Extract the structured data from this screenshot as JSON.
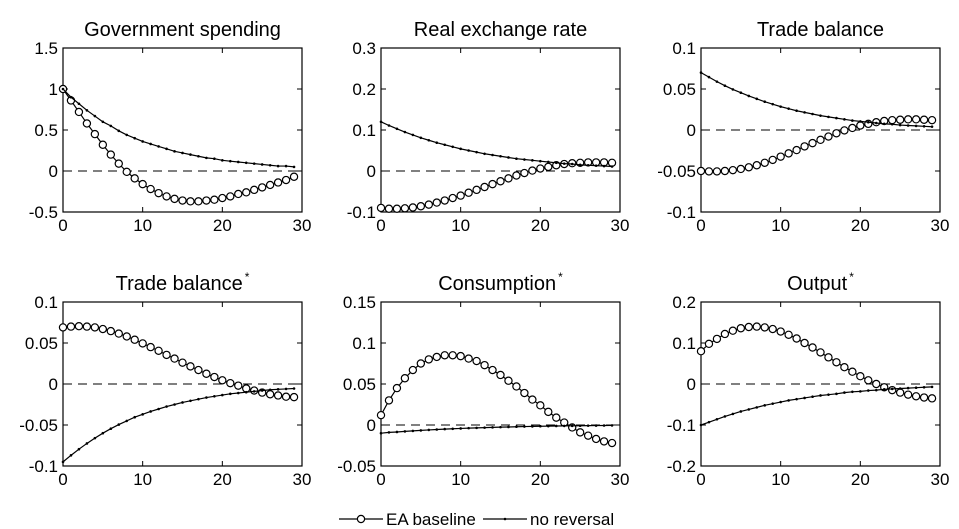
{
  "chart_data": [
    {
      "type": "line",
      "title": "Government spending",
      "title_superscript": "",
      "xlim": [
        0,
        30
      ],
      "ylim": [
        -0.5,
        1.5
      ],
      "xticks": [
        0,
        10,
        20,
        30
      ],
      "xtick_labels": [
        "0",
        "10",
        "20",
        "30"
      ],
      "yticks": [
        -0.5,
        0,
        0.5,
        1,
        1.5
      ],
      "ytick_labels": [
        "-0.5",
        "0",
        "0.5",
        "1",
        "1.5"
      ],
      "zero_line": "dashed",
      "grid": false,
      "x": [
        0,
        1,
        2,
        3,
        4,
        5,
        6,
        7,
        8,
        9,
        10,
        11,
        12,
        13,
        14,
        15,
        16,
        17,
        18,
        19,
        20,
        21,
        22,
        23,
        24,
        25,
        26,
        27,
        28,
        29
      ],
      "series": [
        {
          "name": "EA baseline",
          "marker": "circle",
          "values": [
            1.0,
            0.86,
            0.72,
            0.58,
            0.45,
            0.32,
            0.2,
            0.09,
            -0.01,
            -0.09,
            -0.16,
            -0.22,
            -0.27,
            -0.31,
            -0.34,
            -0.36,
            -0.37,
            -0.37,
            -0.36,
            -0.35,
            -0.33,
            -0.31,
            -0.28,
            -0.26,
            -0.23,
            -0.2,
            -0.17,
            -0.14,
            -0.11,
            -0.07
          ]
        },
        {
          "name": "no reversal",
          "marker": "dot",
          "values": [
            1.0,
            0.9,
            0.82,
            0.74,
            0.67,
            0.6,
            0.55,
            0.49,
            0.44,
            0.4,
            0.36,
            0.33,
            0.3,
            0.27,
            0.24,
            0.22,
            0.2,
            0.18,
            0.16,
            0.15,
            0.13,
            0.12,
            0.11,
            0.1,
            0.09,
            0.08,
            0.07,
            0.06,
            0.06,
            0.05
          ]
        }
      ]
    },
    {
      "type": "line",
      "title": "Real exchange rate",
      "title_superscript": "",
      "xlim": [
        0,
        30
      ],
      "ylim": [
        -0.1,
        0.3
      ],
      "xticks": [
        0,
        10,
        20,
        30
      ],
      "xtick_labels": [
        "0",
        "10",
        "20",
        "30"
      ],
      "yticks": [
        -0.1,
        0,
        0.1,
        0.2,
        0.3
      ],
      "ytick_labels": [
        "-0.1",
        "0",
        "0.1",
        "0.2",
        "0.3"
      ],
      "zero_line": "dashed",
      "grid": false,
      "x": [
        0,
        1,
        2,
        3,
        4,
        5,
        6,
        7,
        8,
        9,
        10,
        11,
        12,
        13,
        14,
        15,
        16,
        17,
        18,
        19,
        20,
        21,
        22,
        23,
        24,
        25,
        26,
        27,
        28,
        29
      ],
      "series": [
        {
          "name": "EA baseline",
          "marker": "circle",
          "values": [
            -0.09,
            -0.092,
            -0.092,
            -0.091,
            -0.089,
            -0.086,
            -0.082,
            -0.077,
            -0.072,
            -0.066,
            -0.06,
            -0.053,
            -0.046,
            -0.039,
            -0.032,
            -0.025,
            -0.018,
            -0.011,
            -0.005,
            0.001,
            0.006,
            0.01,
            0.014,
            0.017,
            0.019,
            0.02,
            0.021,
            0.021,
            0.021,
            0.02
          ]
        },
        {
          "name": "no reversal",
          "marker": "dot",
          "values": [
            0.12,
            0.111,
            0.103,
            0.095,
            0.088,
            0.081,
            0.075,
            0.069,
            0.064,
            0.059,
            0.054,
            0.05,
            0.046,
            0.042,
            0.039,
            0.036,
            0.033,
            0.03,
            0.028,
            0.026,
            0.024,
            0.022,
            0.02,
            0.018,
            0.017,
            0.015,
            0.014,
            0.013,
            0.012,
            0.011
          ]
        }
      ]
    },
    {
      "type": "line",
      "title": "Trade balance",
      "title_superscript": "",
      "xlim": [
        0,
        30
      ],
      "ylim": [
        -0.1,
        0.1
      ],
      "xticks": [
        0,
        10,
        20,
        30
      ],
      "xtick_labels": [
        "0",
        "10",
        "20",
        "30"
      ],
      "yticks": [
        -0.1,
        -0.05,
        0,
        0.05,
        0.1
      ],
      "ytick_labels": [
        "-0.1",
        "-0.05",
        "0",
        "0.05",
        "0.1"
      ],
      "zero_line": "dashed",
      "grid": false,
      "x": [
        0,
        1,
        2,
        3,
        4,
        5,
        6,
        7,
        8,
        9,
        10,
        11,
        12,
        13,
        14,
        15,
        16,
        17,
        18,
        19,
        20,
        21,
        22,
        23,
        24,
        25,
        26,
        27,
        28,
        29
      ],
      "series": [
        {
          "name": "EA baseline",
          "marker": "circle",
          "values": [
            -0.05,
            -0.0505,
            -0.0505,
            -0.05,
            -0.049,
            -0.0475,
            -0.0455,
            -0.043,
            -0.04,
            -0.0365,
            -0.0325,
            -0.0285,
            -0.0245,
            -0.02,
            -0.016,
            -0.012,
            -0.008,
            -0.004,
            -0.0005,
            0.0025,
            0.0055,
            0.0075,
            0.0095,
            0.011,
            0.012,
            0.0125,
            0.013,
            0.013,
            0.0125,
            0.012
          ]
        },
        {
          "name": "no reversal",
          "marker": "dot",
          "values": [
            0.07,
            0.0645,
            0.059,
            0.054,
            0.0495,
            0.0455,
            0.0415,
            0.038,
            0.0345,
            0.0315,
            0.0285,
            0.026,
            0.0235,
            0.0215,
            0.0195,
            0.0175,
            0.016,
            0.0145,
            0.013,
            0.0115,
            0.0105,
            0.0095,
            0.0085,
            0.0075,
            0.007,
            0.006,
            0.0055,
            0.005,
            0.0045,
            0.004
          ]
        }
      ]
    },
    {
      "type": "line",
      "title": "Trade balance",
      "title_superscript": "*",
      "xlim": [
        0,
        30
      ],
      "ylim": [
        -0.1,
        0.1
      ],
      "xticks": [
        0,
        10,
        20,
        30
      ],
      "xtick_labels": [
        "0",
        "10",
        "20",
        "30"
      ],
      "yticks": [
        -0.1,
        -0.05,
        0,
        0.05,
        0.1
      ],
      "ytick_labels": [
        "-0.1",
        "-0.05",
        "0",
        "0.05",
        "0.1"
      ],
      "zero_line": "dashed",
      "grid": false,
      "x": [
        0,
        1,
        2,
        3,
        4,
        5,
        6,
        7,
        8,
        9,
        10,
        11,
        12,
        13,
        14,
        15,
        16,
        17,
        18,
        19,
        20,
        21,
        22,
        23,
        24,
        25,
        26,
        27,
        28,
        29
      ],
      "series": [
        {
          "name": "EA baseline",
          "marker": "circle",
          "values": [
            0.069,
            0.07,
            0.0705,
            0.07,
            0.069,
            0.067,
            0.0645,
            0.0615,
            0.058,
            0.054,
            0.0495,
            0.045,
            0.0405,
            0.0355,
            0.031,
            0.026,
            0.0215,
            0.017,
            0.0125,
            0.0085,
            0.0045,
            0.001,
            -0.002,
            -0.0055,
            -0.008,
            -0.0105,
            -0.0125,
            -0.014,
            -0.0155,
            -0.016
          ]
        },
        {
          "name": "no reversal",
          "marker": "dot",
          "values": [
            -0.095,
            -0.087,
            -0.0795,
            -0.0725,
            -0.066,
            -0.06,
            -0.0545,
            -0.0495,
            -0.045,
            -0.0405,
            -0.037,
            -0.0335,
            -0.0305,
            -0.0275,
            -0.025,
            -0.0225,
            -0.0205,
            -0.0185,
            -0.0165,
            -0.015,
            -0.0135,
            -0.012,
            -0.011,
            -0.01,
            -0.009,
            -0.008,
            -0.007,
            -0.0065,
            -0.006,
            -0.0055
          ]
        }
      ]
    },
    {
      "type": "line",
      "title": "Consumption",
      "title_superscript": "*",
      "xlim": [
        0,
        30
      ],
      "ylim": [
        -0.05,
        0.15
      ],
      "xticks": [
        0,
        10,
        20,
        30
      ],
      "xtick_labels": [
        "0",
        "10",
        "20",
        "30"
      ],
      "yticks": [
        -0.05,
        0,
        0.05,
        0.1,
        0.15
      ],
      "ytick_labels": [
        "-0.05",
        "0",
        "0.05",
        "0.1",
        "0.15"
      ],
      "zero_line": "dashed",
      "grid": false,
      "x": [
        0,
        1,
        2,
        3,
        4,
        5,
        6,
        7,
        8,
        9,
        10,
        11,
        12,
        13,
        14,
        15,
        16,
        17,
        18,
        19,
        20,
        21,
        22,
        23,
        24,
        25,
        26,
        27,
        28,
        29
      ],
      "series": [
        {
          "name": "EA baseline",
          "marker": "circle",
          "values": [
            0.012,
            0.03,
            0.045,
            0.057,
            0.067,
            0.075,
            0.08,
            0.083,
            0.085,
            0.085,
            0.084,
            0.081,
            0.078,
            0.073,
            0.067,
            0.061,
            0.054,
            0.047,
            0.039,
            0.031,
            0.024,
            0.016,
            0.009,
            0.003,
            -0.003,
            -0.009,
            -0.013,
            -0.017,
            -0.02,
            -0.022
          ]
        },
        {
          "name": "no reversal",
          "marker": "dot",
          "values": [
            -0.01,
            -0.009,
            -0.0085,
            -0.0078,
            -0.0072,
            -0.0066,
            -0.006,
            -0.0055,
            -0.005,
            -0.0046,
            -0.0042,
            -0.0038,
            -0.0035,
            -0.0032,
            -0.0029,
            -0.0026,
            -0.0024,
            -0.0021,
            -0.0019,
            -0.0017,
            -0.0015,
            -0.0014,
            -0.0012,
            -0.0011,
            -0.001,
            -0.0009,
            -0.0008,
            -0.0007,
            -0.0006,
            -0.0005
          ]
        }
      ]
    },
    {
      "type": "line",
      "title": "Output",
      "title_superscript": "*",
      "xlim": [
        0,
        30
      ],
      "ylim": [
        -0.2,
        0.2
      ],
      "xticks": [
        0,
        10,
        20,
        30
      ],
      "xtick_labels": [
        "0",
        "10",
        "20",
        "30"
      ],
      "yticks": [
        -0.2,
        -0.1,
        0,
        0.1,
        0.2
      ],
      "ytick_labels": [
        "-0.2",
        "-0.1",
        "0",
        "0.1",
        "0.2"
      ],
      "zero_line": "dashed",
      "grid": false,
      "x": [
        0,
        1,
        2,
        3,
        4,
        5,
        6,
        7,
        8,
        9,
        10,
        11,
        12,
        13,
        14,
        15,
        16,
        17,
        18,
        19,
        20,
        21,
        22,
        23,
        24,
        25,
        26,
        27,
        28,
        29
      ],
      "series": [
        {
          "name": "EA baseline",
          "marker": "circle",
          "values": [
            0.08,
            0.098,
            0.11,
            0.122,
            0.13,
            0.136,
            0.139,
            0.14,
            0.138,
            0.134,
            0.128,
            0.12,
            0.111,
            0.1,
            0.089,
            0.077,
            0.065,
            0.053,
            0.041,
            0.03,
            0.019,
            0.009,
            0.0,
            -0.008,
            -0.015,
            -0.021,
            -0.026,
            -0.03,
            -0.033,
            -0.035
          ]
        },
        {
          "name": "no reversal",
          "marker": "dot",
          "values": [
            -0.1,
            -0.093,
            -0.086,
            -0.079,
            -0.073,
            -0.067,
            -0.062,
            -0.057,
            -0.052,
            -0.048,
            -0.044,
            -0.04,
            -0.037,
            -0.034,
            -0.031,
            -0.028,
            -0.026,
            -0.024,
            -0.021,
            -0.019,
            -0.018,
            -0.016,
            -0.015,
            -0.013,
            -0.012,
            -0.011,
            -0.01,
            -0.009,
            -0.008,
            -0.007
          ]
        }
      ]
    }
  ],
  "legend": {
    "placement": "bottom-center",
    "entries": [
      {
        "label": "EA baseline",
        "marker": "circle"
      },
      {
        "label": "no reversal",
        "marker": "dot"
      }
    ]
  },
  "colors": {
    "line": "#000000",
    "marker_fill": "#ffffff",
    "background": "#ffffff"
  }
}
